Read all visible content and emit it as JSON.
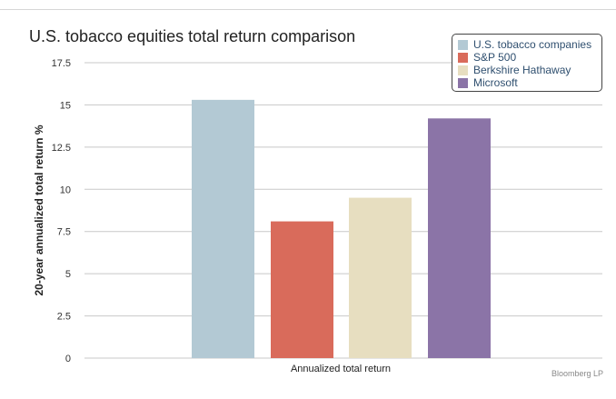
{
  "chart_data": {
    "type": "bar",
    "title": "U.S. tobacco equities total return comparison",
    "xlabel": "Annualized total return",
    "ylabel": "20-year annualized total return %",
    "ylim": [
      0,
      17.5
    ],
    "yticks": [
      0,
      2.5,
      5,
      7.5,
      10,
      12.5,
      15,
      17.5
    ],
    "ytick_labels": [
      "0",
      "2.5",
      "5",
      "7.5",
      "10",
      "12.5",
      "15",
      "17.5"
    ],
    "categories": [
      "Annualized total return"
    ],
    "series": [
      {
        "name": "U.S. tobacco companies",
        "values": [
          15.3
        ],
        "color": "#b3c9d4"
      },
      {
        "name": "S&P 500",
        "values": [
          8.1
        ],
        "color": "#d96b5b"
      },
      {
        "name": "Berkshire Hathaway",
        "values": [
          9.5
        ],
        "color": "#e7dec0"
      },
      {
        "name": "Microsoft",
        "values": [
          14.2
        ],
        "color": "#8b74a7"
      }
    ],
    "grid": true,
    "legend_position": "top-right",
    "source": "Bloomberg LP"
  }
}
